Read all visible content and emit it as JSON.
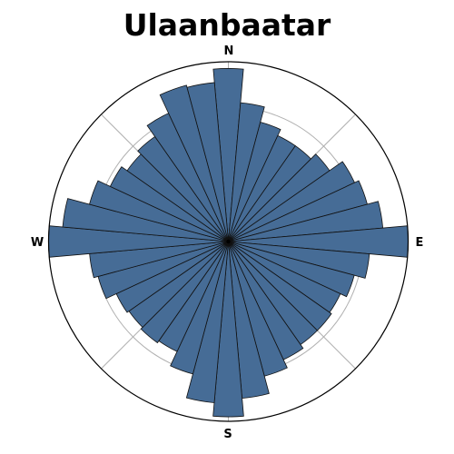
{
  "chart_data": {
    "type": "bar",
    "subtype": "polar-rose",
    "title": "Ulaanbaatar",
    "direction_labels": {
      "north": "N",
      "east": "E",
      "south": "S",
      "west": "W"
    },
    "angle_step_deg": 10,
    "start_direction": "N",
    "rotation": "clockwise",
    "radial_grid": [
      1,
      2,
      3,
      4
    ],
    "rmax": 4,
    "bar_color": "#466c96",
    "bar_edge_color": "#111111",
    "grid_color": "#b0b0b0",
    "series": [
      {
        "angles_deg": [
          0,
          10,
          20,
          30,
          40,
          50,
          60,
          70,
          80,
          90,
          100,
          110,
          120,
          130,
          140,
          150,
          160,
          170,
          180,
          190,
          200,
          210,
          220,
          230,
          240,
          250,
          260,
          270,
          280,
          290,
          300,
          310,
          320,
          330,
          340,
          350
        ],
        "values": [
          3.85,
          3.1,
          2.75,
          2.6,
          2.6,
          2.75,
          3.1,
          3.2,
          3.45,
          4.0,
          3.15,
          2.9,
          2.75,
          2.8,
          2.8,
          2.9,
          3.1,
          3.5,
          3.9,
          3.6,
          3.05,
          2.7,
          2.75,
          2.7,
          2.75,
          3.0,
          3.1,
          4.0,
          3.7,
          3.2,
          2.9,
          2.75,
          2.85,
          3.15,
          3.6,
          3.55
        ]
      }
    ]
  }
}
